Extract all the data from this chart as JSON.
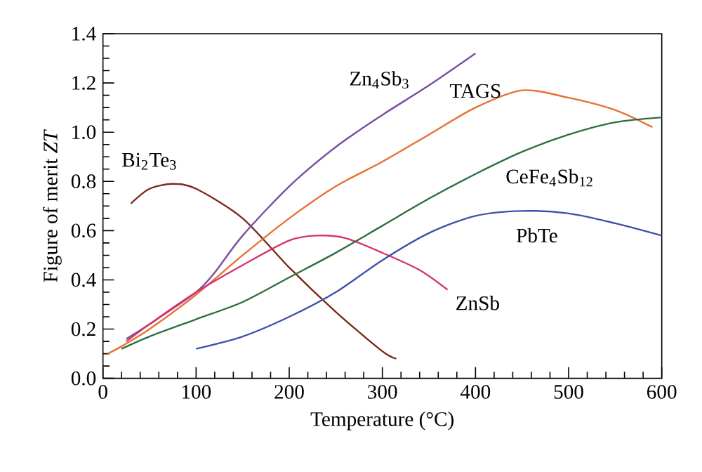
{
  "chart_data": {
    "type": "line",
    "xlabel": "Temperature (°C)",
    "ylabel": "Figure of merit *ZT*",
    "xlim": [
      0,
      600
    ],
    "ylim": [
      0,
      1.4
    ],
    "xticks": [
      0,
      100,
      200,
      300,
      400,
      500,
      600
    ],
    "yticks": [
      {
        "value": 0,
        "label": "0.0"
      },
      {
        "value": 0.2,
        "label": "0.2"
      },
      {
        "value": 0.4,
        "label": "0.4"
      },
      {
        "value": 0.6,
        "label": "0.6"
      },
      {
        "value": 0.8,
        "label": "0.8"
      },
      {
        "value": 1.0,
        "label": "1.0"
      },
      {
        "value": 1.2,
        "label": "1.2"
      },
      {
        "value": 1.4,
        "label": "1.4"
      }
    ],
    "grid": false,
    "legend": false,
    "marker": "none",
    "line_style": "solid",
    "series": [
      {
        "name": "Bi$_{2}$Te$_{3}$",
        "color": "#7b2a1a",
        "x": [
          30,
          50,
          75,
          100,
          150,
          200,
          250,
          300,
          315
        ],
        "values": [
          0.71,
          0.77,
          0.79,
          0.77,
          0.65,
          0.45,
          0.27,
          0.11,
          0.08
        ]
      },
      {
        "name": "Zn$_{4}$Sb$_{3}$",
        "color": "#7b4ea0",
        "x": [
          25,
          50,
          100,
          120,
          150,
          200,
          250,
          300,
          350,
          400
        ],
        "values": [
          0.16,
          0.22,
          0.35,
          0.43,
          0.58,
          0.78,
          0.94,
          1.07,
          1.19,
          1.32
        ]
      },
      {
        "name": "TAGS",
        "color": "#e87030",
        "x": [
          5,
          20,
          50,
          100,
          150,
          200,
          250,
          300,
          350,
          400,
          450,
          500,
          550,
          590
        ],
        "values": [
          0.1,
          0.13,
          0.2,
          0.34,
          0.5,
          0.65,
          0.78,
          0.88,
          0.99,
          1.1,
          1.17,
          1.14,
          1.09,
          1.02
        ]
      },
      {
        "name": "ZnSb",
        "color": "#d6336e",
        "x": [
          25,
          50,
          100,
          150,
          200,
          230,
          260,
          300,
          340,
          370
        ],
        "values": [
          0.15,
          0.22,
          0.35,
          0.46,
          0.56,
          0.58,
          0.57,
          0.51,
          0.44,
          0.36
        ]
      },
      {
        "name": "CeFe$_{4}$Sb$_{12}$",
        "color": "#2e6e3e",
        "x": [
          20,
          50,
          100,
          150,
          200,
          250,
          300,
          350,
          400,
          450,
          500,
          550,
          600
        ],
        "values": [
          0.12,
          0.17,
          0.24,
          0.31,
          0.41,
          0.51,
          0.62,
          0.73,
          0.83,
          0.92,
          0.99,
          1.04,
          1.06
        ]
      },
      {
        "name": "PbTe",
        "color": "#3f50a8",
        "x": [
          100,
          150,
          200,
          250,
          300,
          350,
          400,
          450,
          500,
          550,
          600
        ],
        "values": [
          0.12,
          0.17,
          0.25,
          0.35,
          0.48,
          0.59,
          0.66,
          0.68,
          0.67,
          0.63,
          0.58
        ]
      }
    ]
  }
}
